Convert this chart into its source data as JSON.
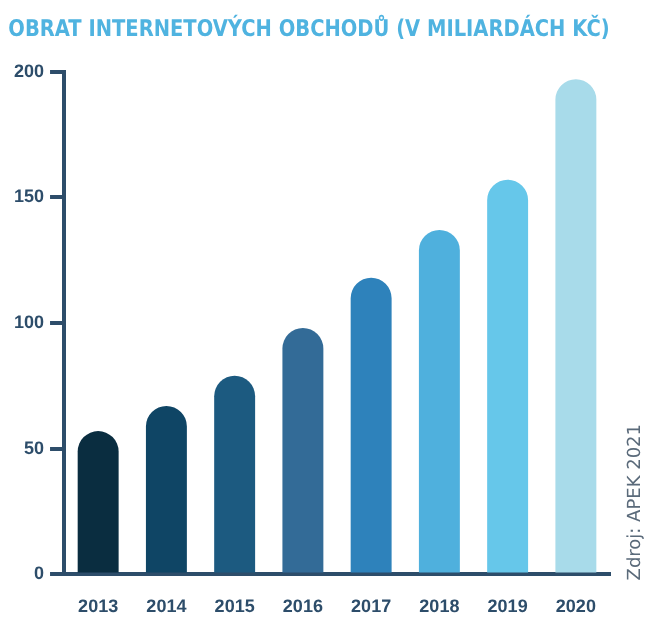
{
  "chart_data": {
    "type": "bar",
    "title": "OBRAT INTERNETOVÝCH OBCHODŮ (V MILIARDÁCH KČ)",
    "categories": [
      "2013",
      "2014",
      "2015",
      "2016",
      "2017",
      "2018",
      "2019",
      "2020"
    ],
    "values": [
      57,
      67,
      79,
      98,
      118,
      137,
      157,
      197
    ],
    "colors": [
      "#0a2d40",
      "#0f4565",
      "#1c5a80",
      "#336b97",
      "#2e82bb",
      "#4fb0dd",
      "#66c7ea",
      "#a8dbea"
    ],
    "ylim": [
      0,
      200
    ],
    "yticks": [
      0,
      50,
      100,
      150,
      200
    ],
    "grid": false,
    "legend": false,
    "annotations": [
      "Zdroj: APEK 2021"
    ]
  }
}
